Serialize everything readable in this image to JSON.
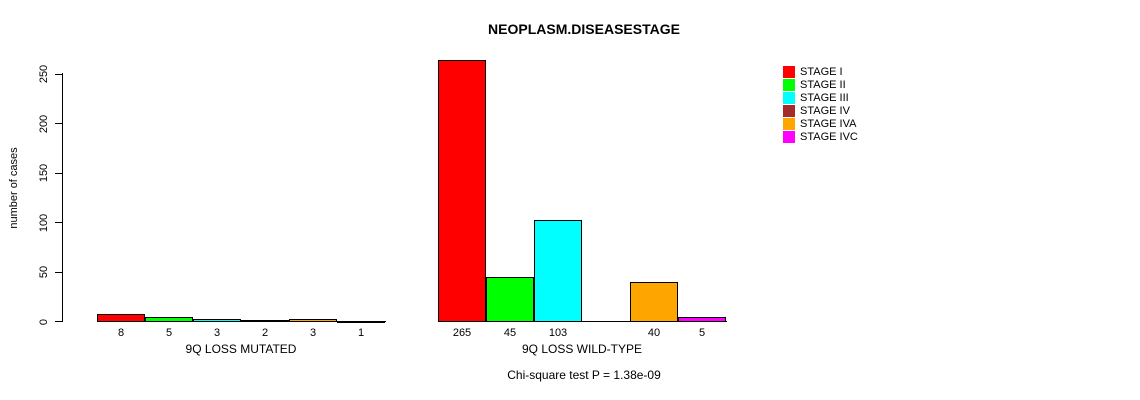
{
  "title": "NEOPLASM.DISEASESTAGE",
  "subtitle": "Chi-square test P = 1.38e-09",
  "chart_data": {
    "type": "bar",
    "title": "NEOPLASM.DISEASESTAGE",
    "xlabel": "",
    "ylabel": "number of cases",
    "ylim": [
      0,
      265
    ],
    "yticks": [
      0,
      50,
      100,
      150,
      200,
      250
    ],
    "grid": false,
    "legend_position": "right",
    "categories": [
      "9Q LOSS MUTATED",
      "9Q LOSS WILD-TYPE"
    ],
    "series": [
      {
        "name": "STAGE I",
        "color": "#FF0000",
        "values": [
          8,
          265
        ]
      },
      {
        "name": "STAGE II",
        "color": "#00FF00",
        "values": [
          5,
          45
        ]
      },
      {
        "name": "STAGE III",
        "color": "#00FFFF",
        "values": [
          3,
          103
        ]
      },
      {
        "name": "STAGE IV",
        "color": "#A52A2A",
        "values": [
          2,
          0
        ]
      },
      {
        "name": "STAGE IVA",
        "color": "#FFA500",
        "values": [
          3,
          40
        ]
      },
      {
        "name": "STAGE IVC",
        "color": "#FF00FF",
        "values": [
          1,
          5
        ]
      }
    ],
    "bar_value_labels": {
      "show": true,
      "hide_zero": true
    },
    "annotation": "Chi-square test P = 1.38e-09"
  }
}
